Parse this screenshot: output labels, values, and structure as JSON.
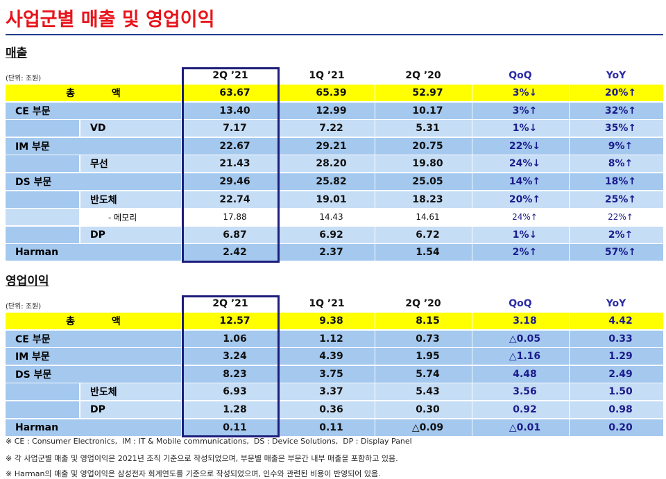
{
  "title": "사업군별 매출 및 영업이익",
  "sections": [
    {
      "heading": "매출",
      "unit": "(단위: 조원)",
      "columns": [
        "2Q ’21",
        "1Q ’21",
        "2Q ’20",
        "QoQ",
        "YoY"
      ],
      "rows": [
        {
          "label": "총 액",
          "style": "total",
          "values": [
            "63.67",
            "65.39",
            "52.97",
            "3%↓",
            "20%↑"
          ]
        },
        {
          "label": "CE 부문",
          "style": "main",
          "values": [
            "13.40",
            "12.99",
            "10.17",
            "3%↑",
            "32%↑"
          ]
        },
        {
          "label": "VD",
          "style": "sub",
          "values": [
            "7.17",
            "7.22",
            "5.31",
            "1%↓",
            "35%↑"
          ]
        },
        {
          "label": "IM 부문",
          "style": "main",
          "values": [
            "22.67",
            "29.21",
            "20.75",
            "22%↓",
            "9%↑"
          ]
        },
        {
          "label": "무선",
          "style": "sub",
          "values": [
            "21.43",
            "28.20",
            "19.80",
            "24%↓",
            "8%↑"
          ]
        },
        {
          "label": "DS 부문",
          "style": "main",
          "values": [
            "29.46",
            "25.82",
            "25.05",
            "14%↑",
            "18%↑"
          ]
        },
        {
          "label": "반도체",
          "style": "sub",
          "values": [
            "22.74",
            "19.01",
            "18.23",
            "20%↑",
            "25%↑"
          ]
        },
        {
          "label": "- 메모리",
          "style": "memo",
          "values": [
            "17.88",
            "14.43",
            "14.61",
            "24%↑",
            "22%↑"
          ]
        },
        {
          "label": "DP",
          "style": "sub",
          "values": [
            "6.87",
            "6.92",
            "6.72",
            "1%↓",
            "2%↑"
          ]
        },
        {
          "label": "Harman",
          "style": "main",
          "values": [
            "2.42",
            "2.37",
            "1.54",
            "2%↑",
            "57%↑"
          ]
        }
      ]
    },
    {
      "heading": "영업이익",
      "unit": "(단위: 조원)",
      "columns": [
        "2Q ’21",
        "1Q ’21",
        "2Q ’20",
        "QoQ",
        "YoY"
      ],
      "rows": [
        {
          "label": "총 액",
          "style": "total",
          "values": [
            "12.57",
            "9.38",
            "8.15",
            "3.18",
            "4.42"
          ]
        },
        {
          "label": "CE 부문",
          "style": "main",
          "values": [
            "1.06",
            "1.12",
            "0.73",
            "△0.05",
            "0.33"
          ]
        },
        {
          "label": "IM 부문",
          "style": "main",
          "values": [
            "3.24",
            "4.39",
            "1.95",
            "△1.16",
            "1.29"
          ]
        },
        {
          "label": "DS 부문",
          "style": "main",
          "values": [
            "8.23",
            "3.75",
            "5.74",
            "4.48",
            "2.49"
          ]
        },
        {
          "label": "반도체",
          "style": "sub",
          "values": [
            "6.93",
            "3.37",
            "5.43",
            "3.56",
            "1.50"
          ]
        },
        {
          "label": "DP",
          "style": "sub",
          "values": [
            "1.28",
            "0.36",
            "0.30",
            "0.92",
            "0.98"
          ]
        },
        {
          "label": "Harman",
          "style": "main",
          "values": [
            "0.11",
            "0.11",
            "△0.09",
            "△0.01",
            "0.20"
          ]
        }
      ]
    }
  ],
  "footnotes": [
    "※ CE : Consumer Electronics,  IM : IT & Mobile communications,  DS : Device Solutions,  DP : Display Panel",
    "※ 각 사업군별 매출 및 영업이익은 2021년 조직 기준으로 작성되었으며, 부문별 매출은 부문간 내부 매출을 포함하고 있음.",
    "※ Harman의 매출 및 영업이익은 삼성전자 회계연도를 기준으로 작성되었으며, 인수와 관련된 비용이 반영되어 있음."
  ]
}
